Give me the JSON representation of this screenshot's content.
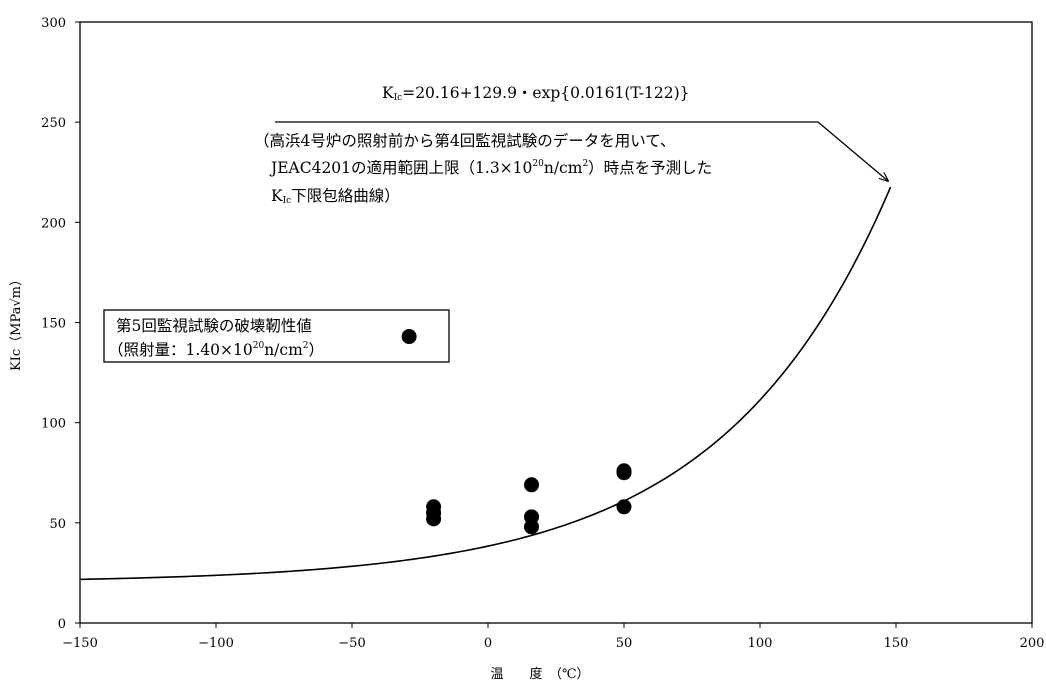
{
  "chart_data": {
    "type": "scatter",
    "xlabel": "温　　度　（℃）",
    "ylabel": "KIc（MPa√m）",
    "xlim": [
      -150,
      200
    ],
    "ylim": [
      0,
      300
    ],
    "x_ticks": [
      -150,
      -100,
      -50,
      0,
      50,
      100,
      150,
      200
    ],
    "y_ticks": [
      0,
      50,
      100,
      150,
      200,
      250,
      300
    ],
    "grid": false,
    "series": [
      {
        "marker": "filled-circle",
        "color": "#000000",
        "points": [
          {
            "x": -29,
            "y": 143
          },
          {
            "x": -20,
            "y": 58
          },
          {
            "x": -20,
            "y": 55
          },
          {
            "x": -20,
            "y": 52
          },
          {
            "x": 16,
            "y": 69
          },
          {
            "x": 16,
            "y": 53
          },
          {
            "x": 16,
            "y": 48
          },
          {
            "x": 50,
            "y": 76
          },
          {
            "x": 50,
            "y": 75
          },
          {
            "x": 50,
            "y": 58
          }
        ]
      },
      {
        "type": "line",
        "color": "#000000",
        "formula": {
          "a": 20.16,
          "b": 129.9,
          "c": 0.0161,
          "t0": 122
        },
        "x_range": [
          -150,
          148
        ]
      }
    ],
    "annotations": {
      "equation": {
        "prefix": "K",
        "sub": "Ic",
        "rest": "=20.16+129.9・exp{0.0161(T-122)}"
      },
      "note_line1": "（高浜4号炉の照射前から第4回監視試験のデータを用いて、",
      "note_line2": {
        "pre": "JEAC4201の適用範囲上限（1.3×10",
        "sup1": "20",
        "mid": "n/cm",
        "sup2": "2",
        "post": "）時点を予測した"
      },
      "note_line3": {
        "pre": "K",
        "sub": "Ic",
        "post": "下限包絡曲線）"
      },
      "legend_line1": "第5回監視試験の破壊靭性値",
      "legend_line2": {
        "pre": "（照射量：1.40×10",
        "sup1": "20",
        "mid": "n/cm",
        "sup2": "2",
        "post": "）"
      }
    }
  }
}
